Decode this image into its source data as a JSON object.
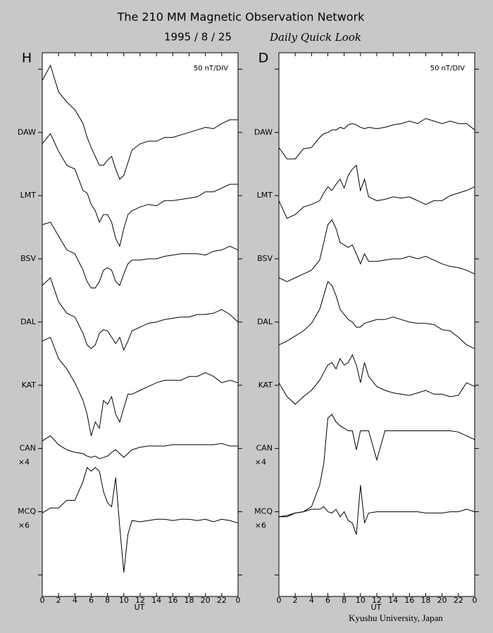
{
  "header": {
    "title": "The 210 MM Magnetic Observation Network",
    "date": "1995 / 8 / 25",
    "subtitle": "Daily Quick Look"
  },
  "footer": "Kyushu University, Japan",
  "chart_data": [
    {
      "type": "line",
      "panel_label": "H",
      "annotation": "50 nT/DIV",
      "xlabel": "UT",
      "x": [
        0,
        1,
        2,
        3,
        4,
        5,
        5.5,
        6,
        6.5,
        7,
        7.5,
        8,
        8.5,
        9,
        9.5,
        10,
        10.5,
        11,
        12,
        13,
        14,
        15,
        16,
        17,
        18,
        19,
        20,
        21,
        22,
        23,
        24
      ],
      "xlim": [
        0,
        24
      ],
      "xticks": [
        0,
        2,
        4,
        6,
        8,
        10,
        12,
        14,
        16,
        18,
        20,
        22,
        {
          "value": 24,
          "label": "0"
        }
      ],
      "ylim": [
        -17,
        413
      ],
      "yticks": [
        {
          "value": 400,
          "label": null
        },
        {
          "value": 350,
          "label": "DAW"
        },
        {
          "value": 300,
          "label": "LMT"
        },
        {
          "value": 250,
          "label": "BSV"
        },
        {
          "value": 200,
          "label": "DAL"
        },
        {
          "value": 150,
          "label": "KAT"
        },
        {
          "value": 100,
          "label": "CAN"
        },
        {
          "value": 50,
          "label": "MCQ"
        },
        {
          "value": 0,
          "label": null
        }
      ],
      "series": [
        {
          "color": "#000000",
          "values": [
            391,
            403,
            382,
            374,
            368,
            357,
            346,
            338,
            331,
            324,
            324,
            328,
            331,
            321,
            313,
            316,
            326,
            336,
            341,
            343,
            343,
            346,
            346,
            348,
            350,
            352,
            354,
            353,
            357,
            360,
            360
          ]
        },
        {
          "color": "#000000",
          "values": [
            341,
            349,
            335,
            324,
            321,
            304,
            302,
            293,
            288,
            279,
            285,
            285,
            279,
            266,
            260,
            274,
            285,
            288,
            291,
            293,
            292,
            296,
            296,
            297,
            298,
            299,
            303,
            303,
            306,
            309,
            309
          ]
        },
        {
          "color": "#000000",
          "values": [
            277,
            279,
            268,
            257,
            254,
            241,
            232,
            227,
            227,
            232,
            241,
            243,
            241,
            232,
            229,
            238,
            246,
            249,
            249,
            250,
            250,
            252,
            253,
            254,
            254,
            254,
            253,
            256,
            257,
            260,
            257
          ]
        },
        {
          "color": "#000000",
          "values": [
            229,
            235,
            216,
            207,
            204,
            191,
            182,
            179,
            182,
            191,
            194,
            193,
            188,
            183,
            188,
            178,
            185,
            193,
            196,
            199,
            200,
            202,
            203,
            204,
            204,
            206,
            206,
            207,
            210,
            206,
            200
          ]
        },
        {
          "color": "#000000",
          "values": [
            185,
            188,
            171,
            163,
            152,
            138,
            127,
            110,
            121,
            116,
            138,
            135,
            141,
            127,
            121,
            132,
            143,
            143,
            146,
            149,
            152,
            154,
            154,
            154,
            157,
            157,
            160,
            157,
            152,
            154,
            152
          ]
        },
        {
          "color": "#000000",
          "scale_label": "×4",
          "values": [
            106,
            110,
            103,
            99,
            97,
            96,
            94,
            93,
            94,
            92,
            93,
            94,
            97,
            99,
            96,
            93,
            96,
            99,
            101,
            102,
            102,
            102,
            103,
            103,
            103,
            103,
            103,
            103,
            104,
            102,
            102
          ]
        },
        {
          "color": "#000000",
          "scale_label": "×6",
          "values": [
            49,
            53,
            53,
            59,
            59,
            74,
            85,
            82,
            85,
            82,
            66,
            57,
            54,
            77,
            38,
            2,
            32,
            43,
            42,
            43,
            44,
            44,
            43,
            44,
            44,
            43,
            44,
            42,
            44,
            43,
            41
          ]
        }
      ]
    },
    {
      "type": "line",
      "panel_label": "D",
      "annotation": "50 nT/DIV",
      "xlabel": "UT",
      "x": [
        0,
        1,
        2,
        3,
        4,
        5,
        5.5,
        6,
        6.5,
        7,
        7.5,
        8,
        8.5,
        9,
        9.5,
        10,
        10.5,
        11,
        12,
        13,
        14,
        15,
        16,
        17,
        18,
        19,
        20,
        21,
        22,
        23,
        24
      ],
      "xlim": [
        0,
        24
      ],
      "xticks": [
        0,
        2,
        4,
        6,
        8,
        10,
        12,
        14,
        16,
        18,
        20,
        22,
        {
          "value": 24,
          "label": "0"
        }
      ],
      "ylim": [
        -17,
        413
      ],
      "yticks": [
        {
          "value": 400,
          "label": null
        },
        {
          "value": 350,
          "label": "DAW"
        },
        {
          "value": 300,
          "label": "LMT"
        },
        {
          "value": 250,
          "label": "BSV"
        },
        {
          "value": 200,
          "label": "DAL"
        },
        {
          "value": 150,
          "label": "KAT"
        },
        {
          "value": 100,
          "label": "CAN"
        },
        {
          "value": 50,
          "label": "MCQ"
        },
        {
          "value": 0,
          "label": null
        }
      ],
      "series": [
        {
          "color": "#000000",
          "values": [
            338,
            329,
            329,
            337,
            338,
            346,
            349,
            350,
            352,
            352,
            354,
            353,
            356,
            357,
            356,
            354,
            353,
            354,
            353,
            354,
            356,
            357,
            359,
            357,
            361,
            359,
            357,
            359,
            357,
            357,
            352
          ]
        },
        {
          "color": "#000000",
          "values": [
            296,
            282,
            285,
            291,
            293,
            296,
            302,
            307,
            304,
            309,
            313,
            306,
            316,
            321,
            324,
            304,
            313,
            299,
            296,
            297,
            299,
            298,
            299,
            296,
            293,
            296,
            296,
            300,
            302,
            304,
            307
          ]
        },
        {
          "color": "#000000",
          "values": [
            235,
            232,
            235,
            238,
            241,
            249,
            263,
            277,
            281,
            274,
            263,
            261,
            259,
            261,
            254,
            246,
            254,
            248,
            248,
            249,
            250,
            250,
            252,
            250,
            252,
            249,
            246,
            244,
            243,
            241,
            238
          ]
        },
        {
          "color": "#000000",
          "values": [
            182,
            185,
            189,
            193,
            199,
            210,
            221,
            232,
            229,
            221,
            210,
            206,
            202,
            200,
            196,
            196,
            199,
            200,
            202,
            202,
            204,
            202,
            200,
            199,
            199,
            198,
            194,
            193,
            188,
            182,
            179
          ]
        },
        {
          "color": "#000000",
          "values": [
            152,
            141,
            135,
            141,
            146,
            154,
            160,
            166,
            168,
            163,
            171,
            166,
            168,
            174,
            166,
            152,
            168,
            157,
            149,
            146,
            144,
            143,
            142,
            144,
            146,
            143,
            143,
            141,
            142,
            152,
            149
          ]
        },
        {
          "color": "#000000",
          "scale_label": "×4",
          "values": [
            46,
            47,
            49,
            50,
            54,
            71,
            88,
            124,
            127,
            121,
            118,
            116,
            114,
            114,
            99,
            114,
            114,
            114,
            91,
            114,
            114,
            114,
            114,
            114,
            114,
            114,
            114,
            114,
            113,
            110,
            107
          ]
        },
        {
          "color": "#000000",
          "scale_label": "×6",
          "values": [
            46,
            46,
            49,
            50,
            52,
            52,
            54,
            50,
            49,
            52,
            46,
            50,
            43,
            41,
            32,
            71,
            41,
            49,
            50,
            50,
            50,
            50,
            50,
            50,
            49,
            49,
            49,
            50,
            50,
            52,
            50
          ]
        }
      ]
    }
  ]
}
